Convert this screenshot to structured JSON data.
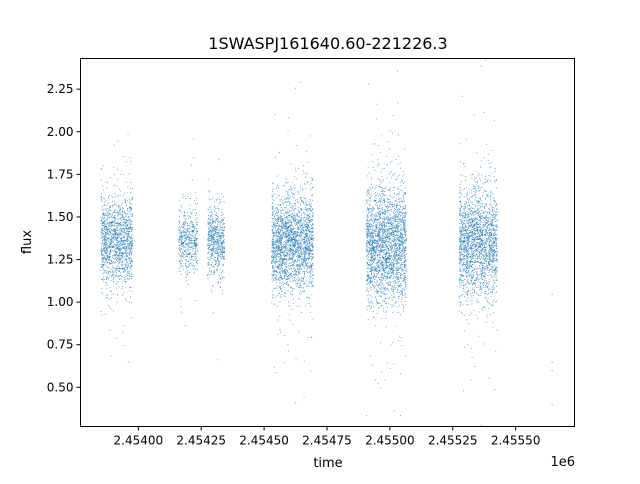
{
  "chart_data": {
    "type": "scatter",
    "title": "1SWASPJ161640.60-221226.3",
    "xlabel": "time",
    "ylabel": "flux",
    "x_offset_label": "1e6",
    "xlim": [
      2453770,
      2455734
    ],
    "ylim": [
      0.27,
      2.43
    ],
    "xticks": [
      2454000,
      2454250,
      2454500,
      2454750,
      2455000,
      2455250,
      2455500
    ],
    "xtick_labels": [
      "2.45400",
      "2.45425",
      "2.45450",
      "2.45475",
      "2.45500",
      "2.45525",
      "2.45550"
    ],
    "yticks": [
      0.5,
      0.75,
      1.0,
      1.25,
      1.5,
      1.75,
      2.0,
      2.25
    ],
    "ytick_labels": [
      "0.50",
      "0.75",
      "1.00",
      "1.25",
      "1.50",
      "1.75",
      "2.00",
      "2.25"
    ],
    "grid": false,
    "marker_color": "#1f77b4",
    "observing_seasons": [
      {
        "time_range": [
          2453849,
          2453976
        ],
        "flux_median": 1.36,
        "flux_spread": 0.13,
        "points": 1400
      },
      {
        "time_range": [
          2454159,
          2454234
        ],
        "flux_median": 1.36,
        "flux_spread": 0.1,
        "points": 500
      },
      {
        "time_range": [
          2454274,
          2454341
        ],
        "flux_median": 1.36,
        "flux_spread": 0.1,
        "points": 600
      },
      {
        "time_range": [
          2454528,
          2454694
        ],
        "flux_median": 1.35,
        "flux_spread": 0.14,
        "points": 2200
      },
      {
        "time_range": [
          2454905,
          2455063
        ],
        "flux_median": 1.34,
        "flux_spread": 0.17,
        "points": 2400
      },
      {
        "time_range": [
          2455274,
          2455425
        ],
        "flux_median": 1.35,
        "flux_spread": 0.16,
        "points": 2000
      }
    ],
    "isolated_points": [
      {
        "time": 2455643,
        "flux": 1.05
      },
      {
        "time": 2455643,
        "flux": 0.65
      },
      {
        "time": 2455643,
        "flux": 0.6
      },
      {
        "time": 2455643,
        "flux": 0.4
      }
    ]
  }
}
